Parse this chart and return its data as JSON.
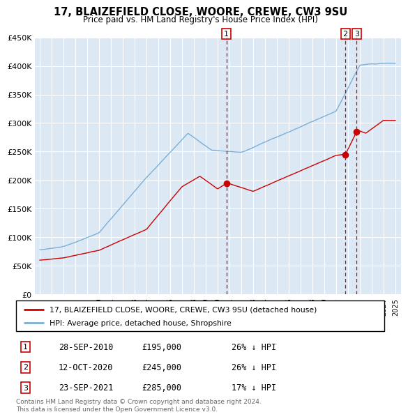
{
  "title": "17, BLAIZEFIELD CLOSE, WOORE, CREWE, CW3 9SU",
  "subtitle": "Price paid vs. HM Land Registry's House Price Index (HPI)",
  "background_color": "#ffffff",
  "plot_bg_color": "#dce9f5",
  "grid_color": "#ffffff",
  "ylim": [
    0,
    450000
  ],
  "yticks": [
    0,
    50000,
    100000,
    150000,
    200000,
    250000,
    300000,
    350000,
    400000,
    450000
  ],
  "ytick_labels": [
    "£0",
    "£50K",
    "£100K",
    "£150K",
    "£200K",
    "£250K",
    "£300K",
    "£350K",
    "£400K",
    "£450K"
  ],
  "xticks": [
    1995,
    1996,
    1997,
    1998,
    1999,
    2000,
    2001,
    2002,
    2003,
    2004,
    2005,
    2006,
    2007,
    2008,
    2009,
    2010,
    2011,
    2012,
    2013,
    2014,
    2015,
    2016,
    2017,
    2018,
    2019,
    2020,
    2021,
    2022,
    2023,
    2024,
    2025
  ],
  "sale_color": "#cc0000",
  "hpi_color": "#7bafd4",
  "marker_color": "#cc0000",
  "vline_color": "#cc0000",
  "sale_points_x": [
    2010.74,
    2020.78,
    2021.73
  ],
  "sale_points_y": [
    195000,
    245000,
    285000
  ],
  "sale_labels": [
    "1",
    "2",
    "3"
  ],
  "transactions": [
    {
      "label": "1",
      "date": "28-SEP-2010",
      "price": "£195,000",
      "hpi_pct": "26% ↓ HPI"
    },
    {
      "label": "2",
      "date": "12-OCT-2020",
      "price": "£245,000",
      "hpi_pct": "26% ↓ HPI"
    },
    {
      "label": "3",
      "date": "23-SEP-2021",
      "price": "£285,000",
      "hpi_pct": "17% ↓ HPI"
    }
  ],
  "legend_line1": "17, BLAIZEFIELD CLOSE, WOORE, CREWE, CW3 9SU (detached house)",
  "legend_line2": "HPI: Average price, detached house, Shropshire",
  "footnote": "Contains HM Land Registry data © Crown copyright and database right 2024.\nThis data is licensed under the Open Government Licence v3.0."
}
